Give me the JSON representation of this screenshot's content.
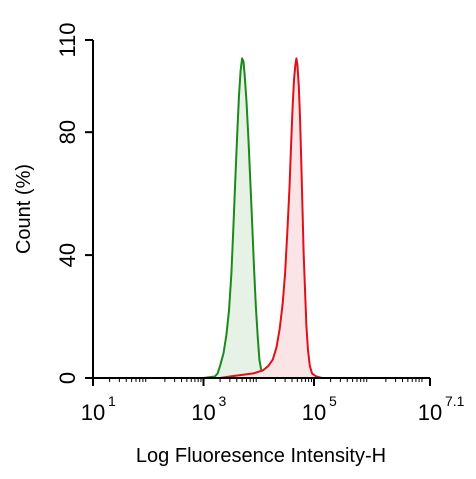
{
  "chart_data": {
    "type": "area",
    "title": "",
    "xlabel": "Log Fluoresence Intensity-H",
    "ylabel": "Count  (%)",
    "x_scale": "log",
    "xlim": [
      10,
      12589254
    ],
    "ylim": [
      0,
      110
    ],
    "x_ticks": [
      {
        "value": 10,
        "base": "10",
        "exp": "1"
      },
      {
        "value": 1000,
        "base": "10",
        "exp": "3"
      },
      {
        "value": 100000,
        "base": "10",
        "exp": "5"
      },
      {
        "value": 12589254,
        "base": "10",
        "exp": "7.1"
      }
    ],
    "y_ticks": [
      {
        "value": 0,
        "label": "0"
      },
      {
        "value": 40,
        "label": "40"
      },
      {
        "value": 80,
        "label": "80"
      },
      {
        "value": 110,
        "label": "110"
      }
    ],
    "grid": false,
    "legend": "none",
    "series": [
      {
        "color": "#1a8a1a",
        "fill": "#e6f2e6",
        "points": [
          [
            1000,
            0
          ],
          [
            1600,
            0.5
          ],
          [
            1800,
            1.5
          ],
          [
            2000,
            4
          ],
          [
            2300,
            8
          ],
          [
            2600,
            14
          ],
          [
            2900,
            22
          ],
          [
            3200,
            34
          ],
          [
            3500,
            50
          ],
          [
            3800,
            66
          ],
          [
            4100,
            80
          ],
          [
            4400,
            92
          ],
          [
            4700,
            100
          ],
          [
            5000,
            104
          ],
          [
            5300,
            103
          ],
          [
            5600,
            98
          ],
          [
            6000,
            90
          ],
          [
            6500,
            78
          ],
          [
            7000,
            65
          ],
          [
            7600,
            50
          ],
          [
            8200,
            36
          ],
          [
            8900,
            23
          ],
          [
            9600,
            13
          ],
          [
            10300,
            6
          ],
          [
            11000,
            3
          ],
          [
            12000,
            1.5
          ],
          [
            14000,
            0.5
          ],
          [
            17000,
            0
          ]
        ]
      },
      {
        "color": "#e0101a",
        "fill": "#fbe4e6",
        "points": [
          [
            2000,
            0
          ],
          [
            3000,
            0.5
          ],
          [
            5000,
            1
          ],
          [
            8000,
            1.5
          ],
          [
            12000,
            2.5
          ],
          [
            15000,
            4
          ],
          [
            18000,
            6
          ],
          [
            21000,
            10
          ],
          [
            24000,
            16
          ],
          [
            27000,
            24
          ],
          [
            30000,
            34
          ],
          [
            33000,
            48
          ],
          [
            36000,
            62
          ],
          [
            38500,
            76
          ],
          [
            41000,
            88
          ],
          [
            43500,
            97
          ],
          [
            46000,
            102
          ],
          [
            48000,
            104
          ],
          [
            50000,
            102
          ],
          [
            53000,
            95
          ],
          [
            56000,
            84
          ],
          [
            59000,
            70
          ],
          [
            62000,
            55
          ],
          [
            65000,
            41
          ],
          [
            69000,
            28
          ],
          [
            73000,
            17
          ],
          [
            78000,
            9
          ],
          [
            84000,
            4
          ],
          [
            92000,
            1.5
          ],
          [
            110000,
            0.5
          ],
          [
            140000,
            0
          ]
        ]
      }
    ]
  }
}
